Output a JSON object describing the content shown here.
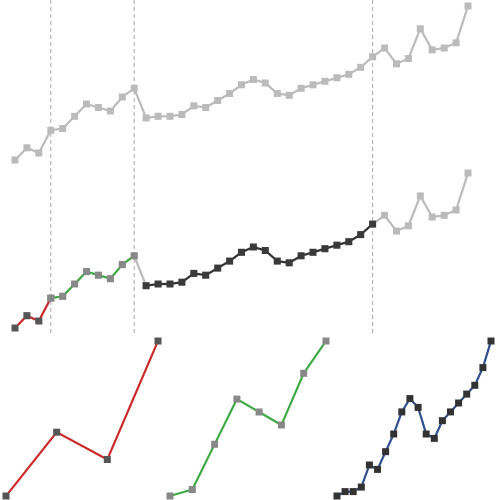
{
  "chart_data": [
    {
      "panel": "full",
      "type": "line",
      "x": [
        1,
        2,
        3,
        4,
        5,
        6,
        7,
        8,
        9,
        10,
        11,
        12,
        13,
        14,
        15,
        16,
        17,
        18,
        19,
        20,
        21,
        22,
        23,
        24,
        25,
        26,
        27,
        28,
        29,
        30,
        31,
        32,
        33,
        34,
        35,
        36,
        37,
        38,
        39
      ],
      "series": [
        {
          "values": [
            1.0,
            1.7,
            1.4,
            2.7,
            2.8,
            3.5,
            4.2,
            4.0,
            3.8,
            4.6,
            5.1,
            3.4,
            3.5,
            3.5,
            3.6,
            4.1,
            4.0,
            4.4,
            4.8,
            5.3,
            5.6,
            5.4,
            4.8,
            4.7,
            5.1,
            5.3,
            5.5,
            5.7,
            5.9,
            6.3,
            6.9,
            7.4,
            6.5,
            6.8,
            8.5,
            7.3,
            7.4,
            7.7,
            9.8
          ],
          "color": "#bbbbbb"
        }
      ],
      "vlines": [
        4,
        11,
        31
      ],
      "grid": false
    },
    {
      "panel": "segmented",
      "type": "line",
      "x": [
        1,
        2,
        3,
        4,
        5,
        6,
        7,
        8,
        9,
        10,
        11,
        12,
        13,
        14,
        15,
        16,
        17,
        18,
        19,
        20,
        21,
        22,
        23,
        24,
        25,
        26,
        27,
        28,
        29,
        30,
        31,
        32,
        33,
        34,
        35,
        36,
        37,
        38,
        39
      ],
      "series": [
        {
          "values": [
            1.0,
            1.7,
            1.4,
            2.7,
            2.8,
            3.5,
            4.2,
            4.0,
            3.8,
            4.6,
            5.1,
            3.4,
            3.5,
            3.5,
            3.6,
            4.1,
            4.0,
            4.4,
            4.8,
            5.3,
            5.6,
            5.4,
            4.8,
            4.7,
            5.1,
            5.3,
            5.5,
            5.7,
            5.9,
            6.3,
            6.9,
            7.4,
            6.5,
            6.8,
            8.5,
            7.3,
            7.4,
            7.7,
            9.8
          ],
          "color": "#bbbbbb"
        }
      ],
      "segments": [
        {
          "from": 1,
          "to": 4,
          "color": "#cc2a2a",
          "marker": "#555555"
        },
        {
          "from": 4,
          "to": 11,
          "color": "#3faa45",
          "marker": "#888888"
        },
        {
          "from": 12,
          "to": 31,
          "color": "#333333",
          "marker": "#3a3a3a"
        }
      ],
      "vlines": [
        4,
        11,
        31
      ],
      "grid": false
    },
    {
      "panel": "segment-1",
      "type": "line",
      "x": [
        1,
        2,
        3,
        4
      ],
      "series": [
        {
          "values": [
            1.0,
            1.7,
            1.4,
            2.7
          ],
          "color": "#cc2a2a",
          "marker": "#555555"
        }
      ]
    },
    {
      "panel": "segment-2",
      "type": "line",
      "x": [
        4,
        5,
        6,
        7,
        8,
        9,
        10,
        11
      ],
      "series": [
        {
          "values": [
            2.7,
            2.8,
            3.5,
            4.2,
            4.0,
            3.8,
            4.6,
            5.1
          ],
          "color": "#3faa45",
          "marker": "#888888"
        }
      ]
    },
    {
      "panel": "segment-3",
      "type": "line",
      "x": [
        12,
        13,
        14,
        15,
        16,
        17,
        18,
        19,
        20,
        21,
        22,
        23,
        24,
        25,
        26,
        27,
        28,
        29,
        30,
        31
      ],
      "series": [
        {
          "values": [
            3.4,
            3.5,
            3.5,
            3.6,
            4.1,
            4.0,
            4.4,
            4.8,
            5.3,
            5.6,
            5.4,
            4.8,
            4.7,
            5.1,
            5.3,
            5.5,
            5.7,
            5.9,
            6.3,
            6.9
          ],
          "color": "#2f4f8f",
          "marker": "#333333"
        }
      ]
    }
  ]
}
